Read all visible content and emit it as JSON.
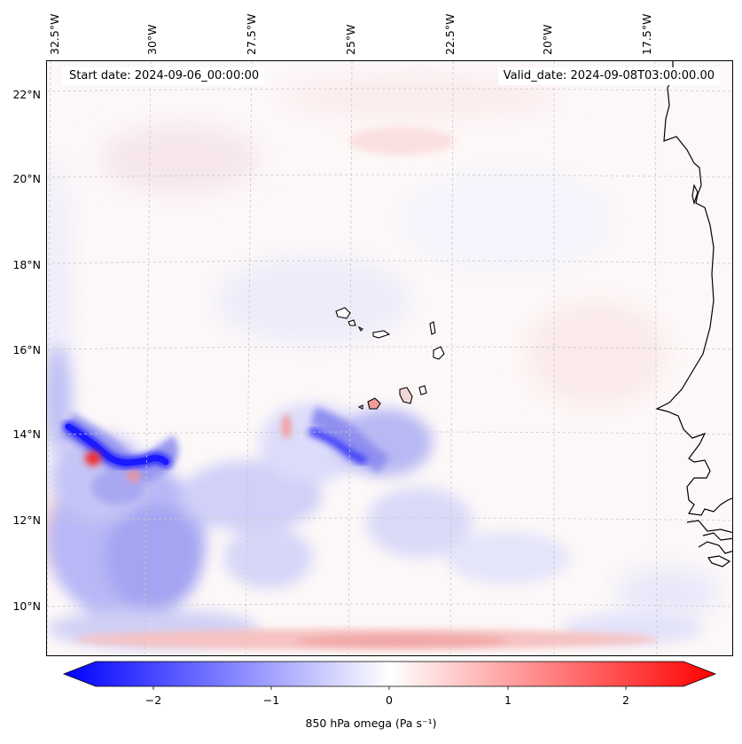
{
  "header": {
    "start_date": "Start date: 2024-09-06_00:00:00",
    "valid_date": "Valid_date: 2024-09-08T03:00:00.00"
  },
  "axes": {
    "lon_labels": [
      "32.5°W",
      "30°W",
      "27.5°W",
      "25°W",
      "22.5°W",
      "20°W",
      "17.5°W"
    ],
    "lat_labels": [
      "22°N",
      "20°N",
      "18°N",
      "16°N",
      "14°N",
      "12°N",
      "10°N"
    ]
  },
  "colorbar": {
    "ticks": [
      "−2",
      "−1",
      "0",
      "1",
      "2"
    ],
    "label": "850 hPa omega (Pa s⁻¹)",
    "min": -2.5,
    "max": 2.5,
    "colors": {
      "negative": "#0000ff",
      "zero": "#ffffff",
      "positive": "#ff0000"
    }
  },
  "map": {
    "colors": {
      "coastline": "#000000",
      "gridline": "#c8c8c8"
    }
  }
}
